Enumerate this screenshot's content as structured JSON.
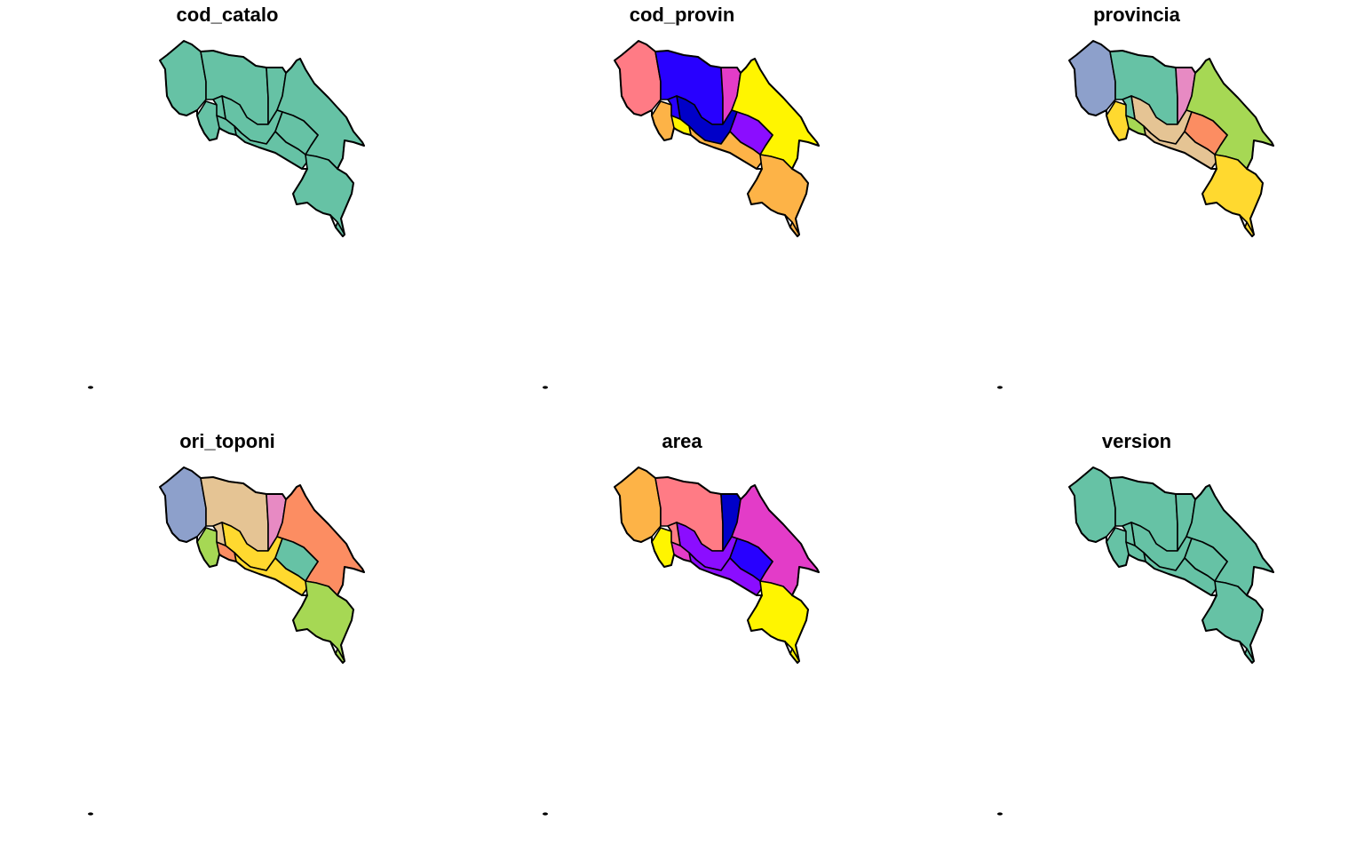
{
  "panels": [
    {
      "title": "cod_catalo",
      "fills": [
        "#66C2A5",
        "#66C2A5",
        "#66C2A5",
        "#66C2A5",
        "#66C2A5",
        "#66C2A5",
        "#66C2A5",
        "#66C2A5",
        "#66C2A5",
        "#66C2A5",
        "#66C2A5",
        "#66C2A5"
      ]
    },
    {
      "title": "cod_provin",
      "fills": [
        "#FF7B85",
        "#2800FF",
        "#E33CC8",
        "#FDB347",
        "#FFF500",
        "#0000C8",
        "#8B0DFF",
        "#FDB347",
        "#FDB347",
        "#FFF500",
        "#2800FF",
        "#FDB347"
      ]
    },
    {
      "title": "provincia",
      "fills": [
        "#8DA0CB",
        "#66C2A5",
        "#E78AC3",
        "#FFD92F",
        "#A6D854",
        "#E5C494",
        "#FC8D62",
        "#E5C494",
        "#FFD92F",
        "#A6D854",
        "#66C2A5",
        "#FFD92F"
      ]
    },
    {
      "title": "ori_toponi",
      "fills": [
        "#8DA0CB",
        "#E5C494",
        "#E78AC3",
        "#A6D854",
        "#FC8D62",
        "#FFD92F",
        "#66C2A5",
        "#FFD92F",
        "#A6D854",
        "#FC8D62",
        "#E5C494",
        "#A6D854"
      ]
    },
    {
      "title": "area",
      "fills": [
        "#FDB347",
        "#FF7B85",
        "#0000C8",
        "#FFF500",
        "#E33CC8",
        "#8B0DFF",
        "#2800FF",
        "#8B0DFF",
        "#FFF500",
        "#E33CC8",
        "#FF7B85",
        "#FFF500"
      ]
    },
    {
      "title": "version",
      "fills": [
        "#66C2A5",
        "#66C2A5",
        "#66C2A5",
        "#66C2A5",
        "#66C2A5",
        "#66C2A5",
        "#66C2A5",
        "#66C2A5",
        "#66C2A5",
        "#66C2A5",
        "#66C2A5",
        "#66C2A5"
      ]
    }
  ]
}
